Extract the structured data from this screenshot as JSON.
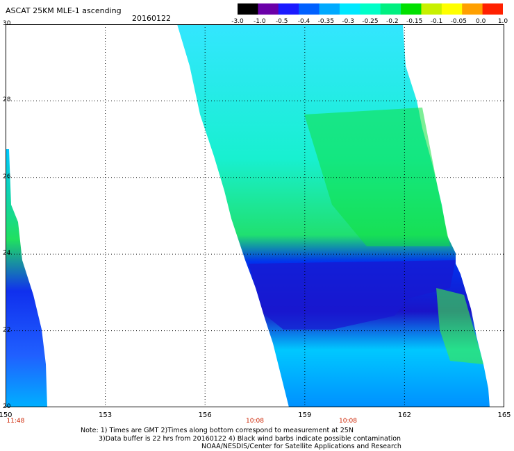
{
  "header": {
    "title": "ASCAT 25KM MLE-1 ascending",
    "date": "20160122"
  },
  "colorbar": {
    "labels": [
      "-3.0",
      "-1.0",
      "-0.5",
      "-0.4",
      "-0.35",
      "-0.3",
      "-0.25",
      "-0.2",
      "-0.15",
      "-0.1",
      "-0.05",
      "0.0",
      "1.0"
    ],
    "colors": [
      "#000000",
      "#6a00a8",
      "#1a1aff",
      "#0060ff",
      "#00aaff",
      "#00e8ff",
      "#00ffc8",
      "#00f080",
      "#00e000",
      "#c8f000",
      "#ffff00",
      "#ffa000",
      "#ff2000"
    ]
  },
  "map": {
    "lon_labels": [
      "150",
      "153",
      "156",
      "159",
      "162",
      "165"
    ],
    "lat_labels": [
      "30",
      "28",
      "26",
      "24",
      "22",
      "20"
    ],
    "time_labels": [
      "11:48",
      "10:08",
      "10:08"
    ],
    "lon_range": [
      150,
      165
    ],
    "lat_range": [
      20,
      30
    ],
    "grid": true
  },
  "footer": {
    "note_line1": "Note: 1) Times are GMT 2)Times along bottom correspond to measurement at 25N",
    "note_line2": "3)Data buffer is 22 hrs from 20160122 4) Black wind barbs indicate possible contamination",
    "credit": "NOAA/NESDIS/Center for Satellite Applications and Research"
  }
}
